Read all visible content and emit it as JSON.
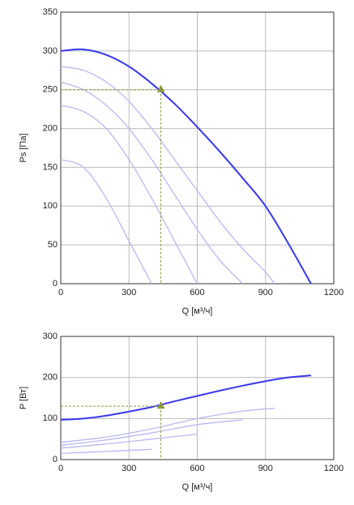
{
  "chart_data": [
    {
      "type": "line",
      "ylabel": "Ps [Па]",
      "xlabel": "Q [м³/ч]",
      "xlim": [
        0,
        1200
      ],
      "xticks": [
        0,
        300,
        600,
        900,
        1200
      ],
      "ylim": [
        0,
        350
      ],
      "yticks": [
        0,
        50,
        100,
        150,
        200,
        250,
        300,
        350
      ],
      "grid": true,
      "operating_point": {
        "x": 440,
        "y": 250,
        "color": "#8a9a3a"
      },
      "series": [
        {
          "color": "#b8b8f2",
          "x": [
            0,
            100,
            200,
            300,
            400,
            500,
            600,
            700,
            800,
            900,
            940
          ],
          "values": [
            280,
            275,
            260,
            235,
            200,
            160,
            120,
            80,
            45,
            15,
            0
          ]
        },
        {
          "color": "#b8b8f2",
          "x": [
            0,
            100,
            200,
            300,
            400,
            500,
            600,
            700,
            800
          ],
          "values": [
            260,
            250,
            230,
            200,
            160,
            115,
            70,
            30,
            0
          ]
        },
        {
          "color": "#b8b8f2",
          "x": [
            0,
            100,
            200,
            300,
            400,
            500,
            600
          ],
          "values": [
            230,
            222,
            200,
            160,
            110,
            55,
            0
          ]
        },
        {
          "color": "#b8b8f2",
          "x": [
            0,
            100,
            200,
            300,
            400
          ],
          "values": [
            160,
            150,
            110,
            55,
            0
          ]
        },
        {
          "color": "#3838ee",
          "x": [
            0,
            100,
            200,
            300,
            400,
            500,
            600,
            700,
            800,
            900,
            1000,
            1100
          ],
          "values": [
            300,
            302,
            295,
            280,
            258,
            232,
            202,
            170,
            136,
            100,
            52,
            0
          ]
        }
      ]
    },
    {
      "type": "line",
      "ylabel": "P [Вт]",
      "xlabel": "Q [м³/ч]",
      "xlim": [
        0,
        1200
      ],
      "xticks": [
        0,
        300,
        600,
        900,
        1200
      ],
      "ylim": [
        0,
        300
      ],
      "yticks": [
        0,
        100,
        200,
        300
      ],
      "grid": true,
      "operating_point": {
        "x": 440,
        "y": 130,
        "color": "#8a9a3a"
      },
      "series": [
        {
          "color": "#b8b8f2",
          "x": [
            0,
            200,
            400,
            600,
            800,
            940
          ],
          "values": [
            42,
            55,
            75,
            100,
            118,
            125
          ]
        },
        {
          "color": "#b8b8f2",
          "x": [
            0,
            200,
            400,
            600,
            800
          ],
          "values": [
            35,
            48,
            65,
            85,
            97
          ]
        },
        {
          "color": "#b8b8f2",
          "x": [
            0,
            200,
            400,
            600
          ],
          "values": [
            28,
            38,
            50,
            62
          ]
        },
        {
          "color": "#b8b8f2",
          "x": [
            0,
            200,
            400
          ],
          "values": [
            15,
            20,
            25
          ]
        },
        {
          "color": "#3838ee",
          "x": [
            0,
            100,
            200,
            300,
            400,
            500,
            600,
            700,
            800,
            900,
            1000,
            1100
          ],
          "values": [
            97,
            100,
            107,
            117,
            128,
            142,
            155,
            168,
            180,
            191,
            200,
            205
          ]
        }
      ]
    }
  ]
}
